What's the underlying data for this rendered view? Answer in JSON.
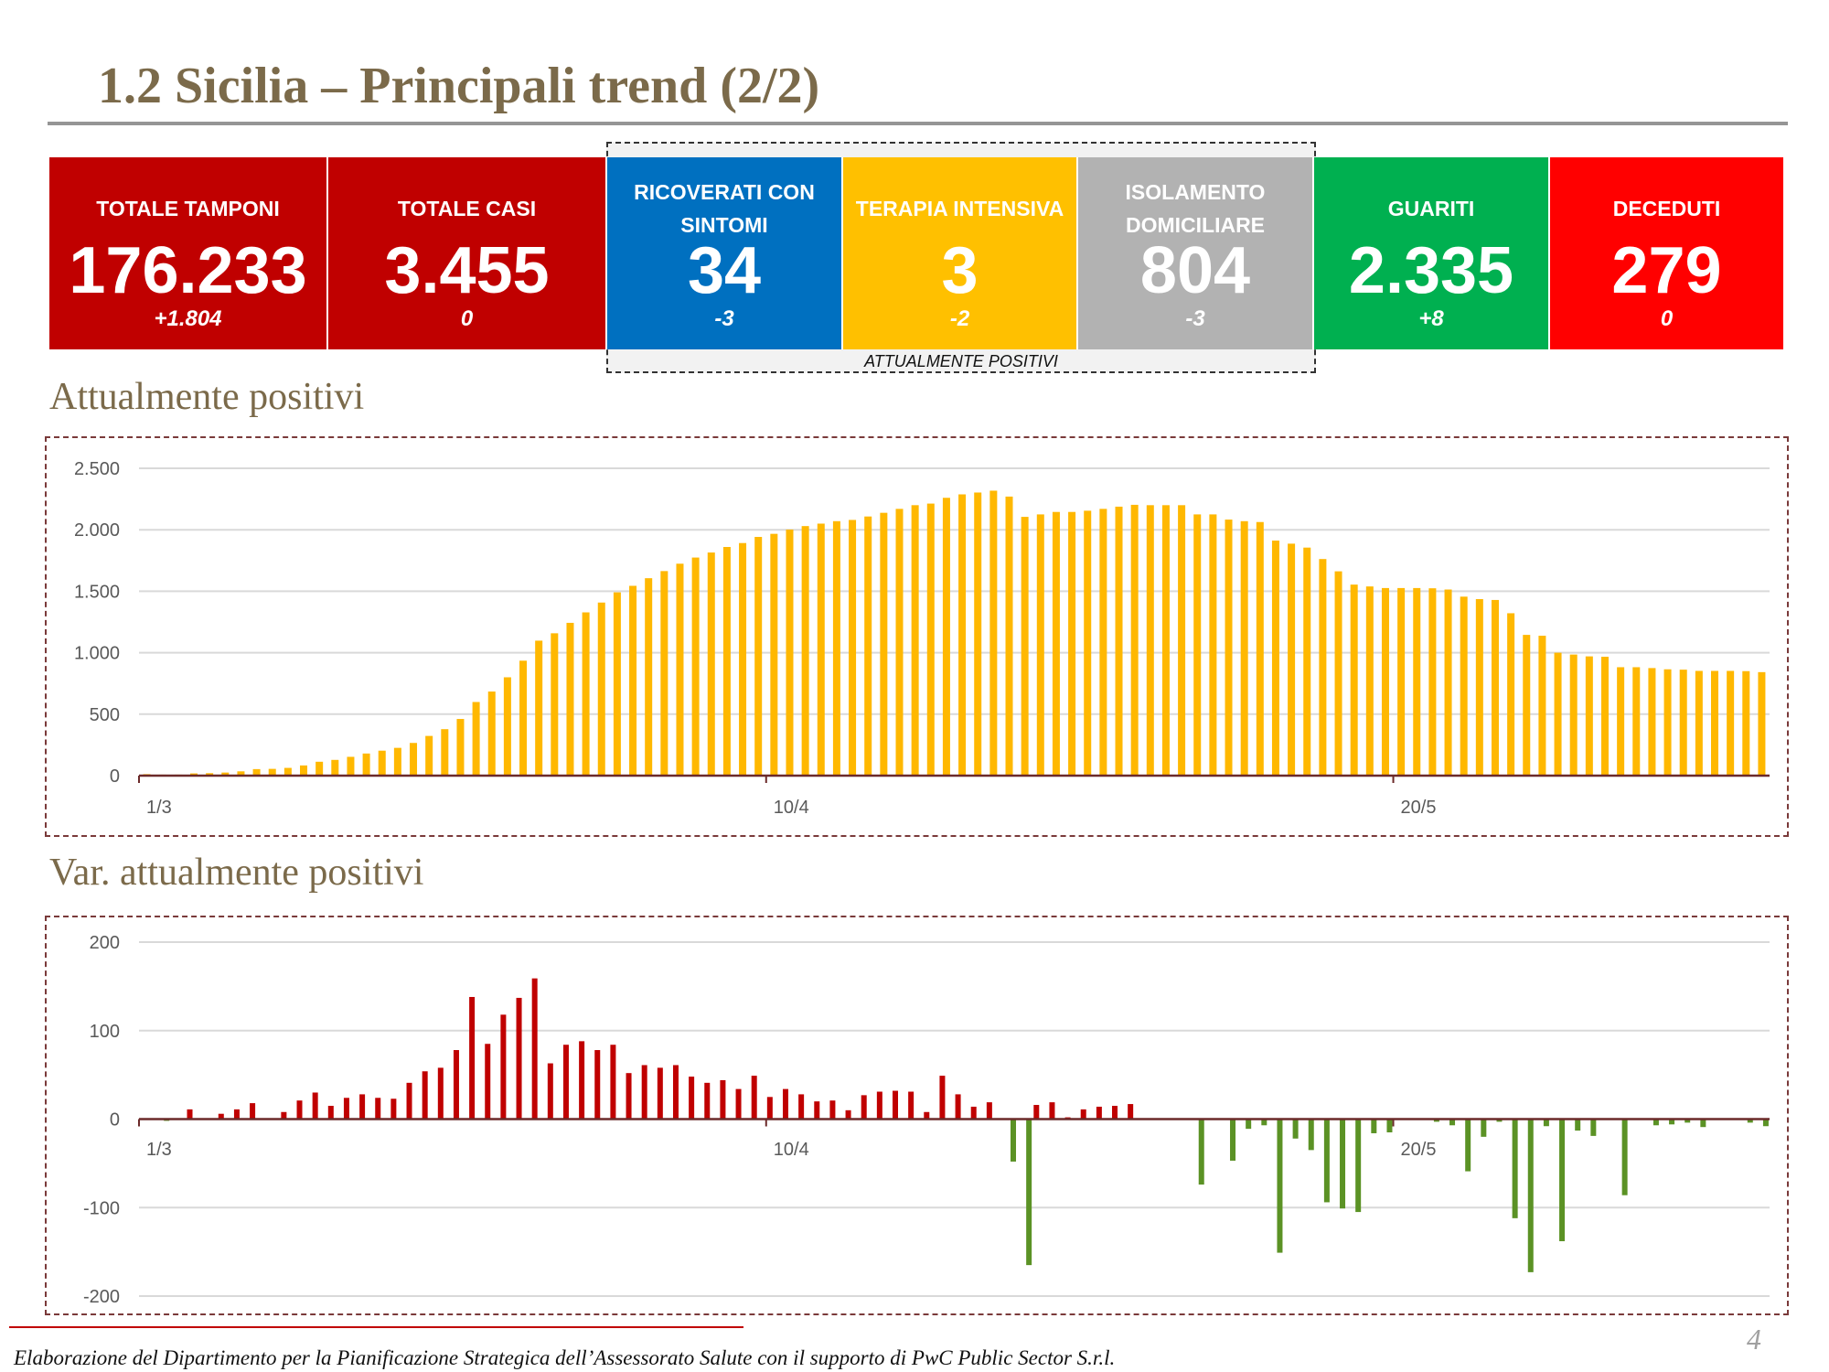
{
  "title": "1.2 Sicilia – Principali trend (2/2)",
  "kpis": [
    {
      "label": "TOTALE TAMPONI",
      "value": "176.233",
      "delta": "+1.804",
      "color": "#C00000"
    },
    {
      "label": "TOTALE CASI",
      "value": "3.455",
      "delta": "0",
      "color": "#C00000"
    },
    {
      "label": "RICOVERATI CON SINTOMI",
      "value": "34",
      "delta": "-3",
      "color": "#0070C0"
    },
    {
      "label": "TERAPIA INTENSIVA",
      "value": "3",
      "delta": "-2",
      "color": "#FFC000"
    },
    {
      "label": "ISOLAMENTO DOMICILIARE",
      "value": "804",
      "delta": "-3",
      "color": "#B2B2B2"
    },
    {
      "label": "GUARITI",
      "value": "2.335",
      "delta": "+8",
      "color": "#00B050"
    },
    {
      "label": "DECEDUTI",
      "value": "279",
      "delta": "0",
      "color": "#FF0000"
    }
  ],
  "group_label": "ATTUALMENTE POSITIVI",
  "sections": {
    "chart1": "Attualmente positivi",
    "chart2": "Var. attualmente positivi"
  },
  "chart_data": [
    {
      "type": "bar",
      "title": "",
      "x_range": [
        "1/3",
        "12/6"
      ],
      "x_tick_labels": [
        "1/3",
        "10/4",
        "20/5"
      ],
      "x_tick_index": [
        0,
        40,
        80
      ],
      "y_ticks": [
        0,
        500,
        1000,
        1500,
        2000,
        2500
      ],
      "y_tick_labels": [
        "0",
        "500",
        "1.000",
        "1.500",
        "2.000",
        "2.500"
      ],
      "ylim": [
        0,
        2500
      ],
      "grid": true,
      "color": "#FFB800",
      "values": [
        12,
        8,
        8,
        18,
        20,
        25,
        35,
        53,
        55,
        63,
        83,
        113,
        128,
        153,
        180,
        203,
        226,
        266,
        323,
        378,
        461,
        599,
        684,
        800,
        935,
        1098,
        1158,
        1243,
        1328,
        1408,
        1491,
        1544,
        1606,
        1664,
        1724,
        1774,
        1815,
        1860,
        1892,
        1942,
        1967,
        2002,
        2030,
        2050,
        2070,
        2080,
        2108,
        2138,
        2170,
        2200,
        2213,
        2260,
        2288,
        2303,
        2318,
        2270,
        2105,
        2125,
        2145,
        2145,
        2155,
        2170,
        2188,
        2203,
        2200,
        2200,
        2200,
        2125,
        2125,
        2083,
        2070,
        2063,
        1912,
        1887,
        1855,
        1762,
        1662,
        1554,
        1539,
        1526,
        1526,
        1526,
        1524,
        1514,
        1456,
        1436,
        1429,
        1321,
        1145,
        1138,
        1000,
        985,
        970,
        967,
        882,
        882,
        875,
        865,
        862,
        852,
        852,
        852,
        850,
        842
      ]
    },
    {
      "type": "bar",
      "title": "",
      "x_range": [
        "1/3",
        "12/6"
      ],
      "x_tick_labels": [
        "1/3",
        "10/4",
        "20/5"
      ],
      "x_tick_index": [
        0,
        40,
        80
      ],
      "y_ticks": [
        -200,
        -100,
        0,
        100,
        200
      ],
      "y_tick_labels": [
        "-200",
        "-100",
        "0",
        "100",
        "200"
      ],
      "ylim": [
        -200,
        200
      ],
      "grid": true,
      "positive_color": "#C00000",
      "negative_color": "#5B9225",
      "values": [
        0,
        -2,
        0,
        11,
        0,
        6,
        11,
        18,
        1,
        8,
        21,
        30,
        15,
        24,
        28,
        24,
        23,
        41,
        54,
        58,
        78,
        138,
        85,
        118,
        137,
        159,
        63,
        84,
        88,
        78,
        84,
        52,
        61,
        58,
        61,
        48,
        41,
        44,
        34,
        49,
        25,
        34,
        28,
        20,
        21,
        10,
        27,
        31,
        32,
        31,
        8,
        49,
        28,
        14,
        19,
        -48,
        -165,
        16,
        19,
        2,
        11,
        14,
        15,
        17,
        0,
        0,
        0,
        -74,
        0,
        -47,
        -11,
        -7,
        -151,
        -22,
        -35,
        -94,
        -101,
        -105,
        -16,
        -15,
        0,
        0,
        -3,
        -7,
        -59,
        -20,
        -3,
        -112,
        -173,
        -8,
        -138,
        -13,
        -19,
        0,
        -86,
        0,
        -7,
        -6,
        -4,
        -9,
        0,
        0,
        -4,
        -8
      ]
    }
  ],
  "footer": "Elaborazione del Dipartimento per la Pianificazione Strategica dell’Assessorato Salute con il supporto di PwC Public Sector S.r.l.",
  "page_number": "4"
}
